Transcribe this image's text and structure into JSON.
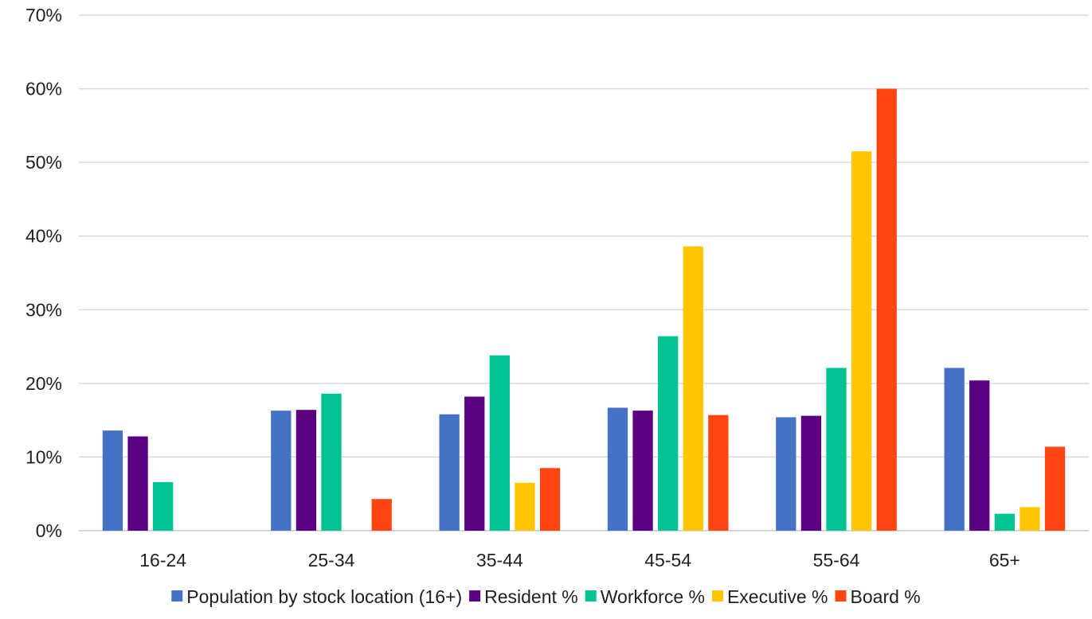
{
  "chart_data": {
    "type": "bar",
    "title": "",
    "xlabel": "",
    "ylabel": "",
    "categories": [
      "16-24",
      "25-34",
      "35-44",
      "45-54",
      "55-64",
      "65+"
    ],
    "ylim": [
      0,
      70
    ],
    "yticks": [
      0,
      10,
      20,
      30,
      40,
      50,
      60,
      70
    ],
    "ytick_labels": [
      "0%",
      "10%",
      "20%",
      "30%",
      "40%",
      "50%",
      "60%",
      "70%"
    ],
    "grid": true,
    "legend_position": "bottom",
    "series": [
      {
        "name": "Population by stock location (16+)",
        "color": "#4472C4",
        "values": [
          13.6,
          16.3,
          15.8,
          16.7,
          15.4,
          22.1
        ]
      },
      {
        "name": "Resident %",
        "color": "#5C0082",
        "values": [
          12.8,
          16.4,
          18.2,
          16.3,
          15.6,
          20.4
        ]
      },
      {
        "name": "Workforce %",
        "color": "#00C393",
        "values": [
          6.6,
          18.6,
          23.8,
          26.4,
          22.1,
          2.3
        ]
      },
      {
        "name": "Executive %",
        "color": "#FFC600",
        "values": [
          0,
          0,
          6.5,
          38.6,
          51.5,
          3.2
        ]
      },
      {
        "name": "Board %",
        "color": "#FF4611",
        "values": [
          0,
          4.3,
          8.5,
          15.7,
          60.0,
          11.4
        ]
      }
    ]
  }
}
